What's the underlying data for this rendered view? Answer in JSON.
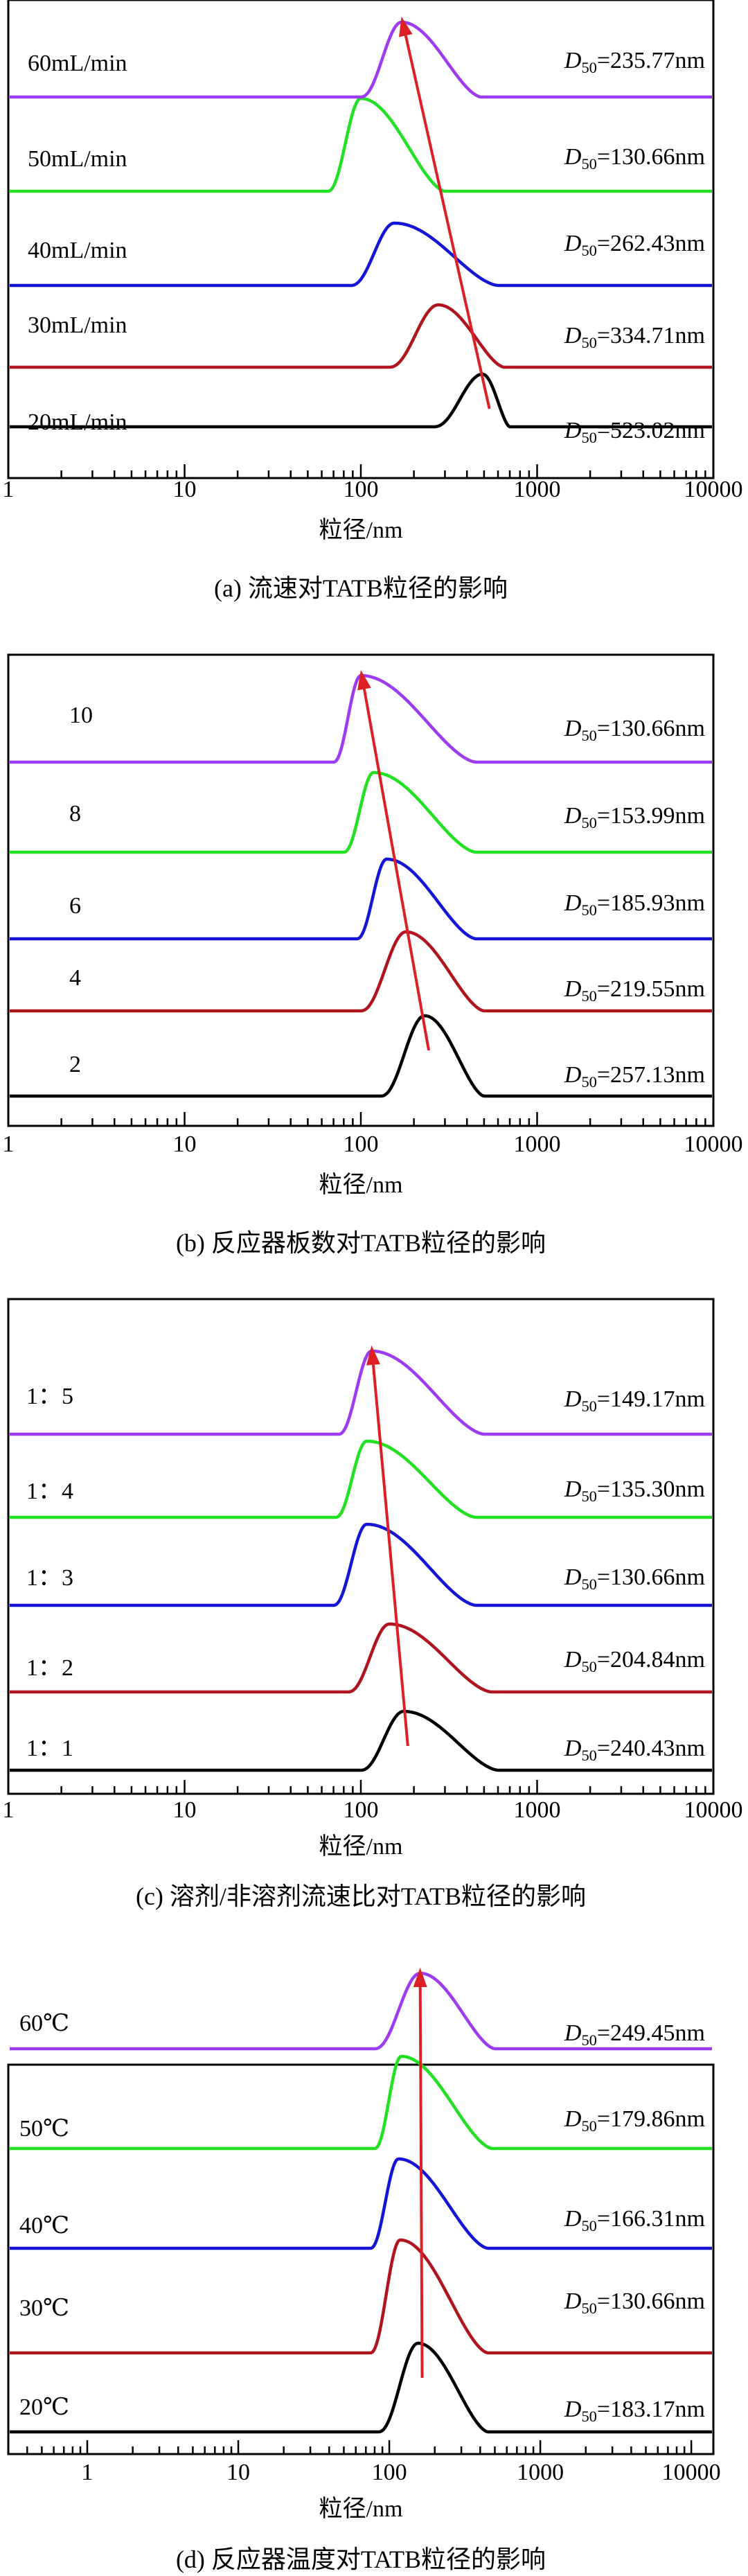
{
  "arrow_color": "#dd1f26",
  "chart_data": [
    {
      "type": "line",
      "id": "a",
      "caption": "(a) 流速对TATB粒径的影响",
      "xlabel": "粒径/nm",
      "xscale": "log",
      "xlim": [
        1,
        10000
      ],
      "xticks": [
        "1",
        "10",
        "100",
        "1000",
        "10000"
      ],
      "ylabel": "",
      "series": [
        {
          "label": "20mL/min",
          "d50_value": 523.02,
          "d50_text": "=523.02nm",
          "color": "#000000",
          "mode": 490,
          "lo": 260,
          "hi": 700
        },
        {
          "label": "30mL/min",
          "d50_value": 334.71,
          "d50_text": "=334.71nm",
          "color": "#b0141e",
          "mode": 275,
          "lo": 145,
          "hi": 650
        },
        {
          "label": "40mL/min",
          "d50_value": 262.43,
          "d50_text": "=262.43nm",
          "color": "#1515d6",
          "mode": 155,
          "lo": 88,
          "hi": 600
        },
        {
          "label": "50mL/min",
          "d50_value": 130.66,
          "d50_text": "=130.66nm",
          "color": "#22e022",
          "mode": 100,
          "lo": 65,
          "hi": 300
        },
        {
          "label": "60mL/min",
          "d50_value": 235.77,
          "d50_text": "=235.77nm",
          "color": "#9d3bf0",
          "mode": 170,
          "lo": 100,
          "hi": 480
        }
      ]
    },
    {
      "type": "line",
      "id": "b",
      "caption": "(b) 反应器板数对TATB粒径的影响",
      "xlabel": "粒径/nm",
      "xscale": "log",
      "xlim": [
        1,
        10000
      ],
      "xticks": [
        "1",
        "10",
        "100",
        "1000",
        "10000"
      ],
      "ylabel": "",
      "series": [
        {
          "label": "2",
          "d50_value": 257.13,
          "d50_text": "=257.13nm",
          "color": "#000000",
          "mode": 230,
          "lo": 130,
          "hi": 500
        },
        {
          "label": "4",
          "d50_value": 219.55,
          "d50_text": "=219.55nm",
          "color": "#b0141e",
          "mode": 180,
          "lo": 100,
          "hi": 500
        },
        {
          "label": "6",
          "d50_value": 185.93,
          "d50_text": "=185.93nm",
          "color": "#1515d6",
          "mode": 140,
          "lo": 95,
          "hi": 450
        },
        {
          "label": "8",
          "d50_value": 153.99,
          "d50_text": "=153.99nm",
          "color": "#22e022",
          "mode": 118,
          "lo": 80,
          "hi": 450
        },
        {
          "label": "10",
          "d50_value": 130.66,
          "d50_text": "=130.66nm",
          "color": "#9d3bf0",
          "mode": 100,
          "lo": 70,
          "hi": 450
        }
      ]
    },
    {
      "type": "line",
      "id": "c",
      "caption": "(c) 溶剂/非溶剂流速比对TATB粒径的影响",
      "xlabel": "粒径/nm",
      "xscale": "log",
      "xlim": [
        1,
        10000
      ],
      "xticks": [
        "1",
        "10",
        "100",
        "1000",
        "10000"
      ],
      "ylabel": "",
      "series": [
        {
          "label": "1：1",
          "d50_value": 240.43,
          "d50_text": "=240.43nm",
          "color": "#000000",
          "mode": 175,
          "lo": 100,
          "hi": 600
        },
        {
          "label": "1：2",
          "d50_value": 204.84,
          "d50_text": "=204.84nm",
          "color": "#b0141e",
          "mode": 145,
          "lo": 85,
          "hi": 550
        },
        {
          "label": "1：3",
          "d50_value": 130.66,
          "d50_text": "=130.66nm",
          "color": "#1515d6",
          "mode": 108,
          "lo": 70,
          "hi": 450
        },
        {
          "label": "1：4",
          "d50_value": 135.3,
          "d50_text": "=135.30nm",
          "color": "#22e022",
          "mode": 108,
          "lo": 72,
          "hi": 450
        },
        {
          "label": "1：5",
          "d50_value": 149.17,
          "d50_text": "=149.17nm",
          "color": "#9d3bf0",
          "mode": 115,
          "lo": 75,
          "hi": 500
        }
      ]
    },
    {
      "type": "line",
      "id": "d",
      "caption": "(d) 反应器温度对TATB粒径的影响",
      "xlabel": "粒径/nm",
      "xscale": "log",
      "xlim": [
        0.3,
        14000
      ],
      "xticks": [
        "1",
        "10",
        "100",
        "1000",
        "10000"
      ],
      "ylabel": "",
      "series": [
        {
          "label": "20℃",
          "d50_value": 183.17,
          "d50_text": "=183.17nm",
          "color": "#000000",
          "mode": 155,
          "lo": 85,
          "hi": 450
        },
        {
          "label": "30℃",
          "d50_value": 130.66,
          "d50_text": "=130.66nm",
          "color": "#b0141e",
          "mode": 118,
          "lo": 75,
          "hi": 450
        },
        {
          "label": "40℃",
          "d50_value": 166.31,
          "d50_text": "=166.31nm",
          "color": "#1515d6",
          "mode": 115,
          "lo": 75,
          "hi": 450
        },
        {
          "label": "50℃",
          "d50_value": 179.86,
          "d50_text": "=179.86nm",
          "color": "#22e022",
          "mode": 120,
          "lo": 80,
          "hi": 480
        },
        {
          "label": "60℃",
          "d50_value": 249.45,
          "d50_text": "=249.45nm",
          "color": "#9d3bf0",
          "mode": 160,
          "lo": 80,
          "hi": 500
        }
      ]
    }
  ]
}
